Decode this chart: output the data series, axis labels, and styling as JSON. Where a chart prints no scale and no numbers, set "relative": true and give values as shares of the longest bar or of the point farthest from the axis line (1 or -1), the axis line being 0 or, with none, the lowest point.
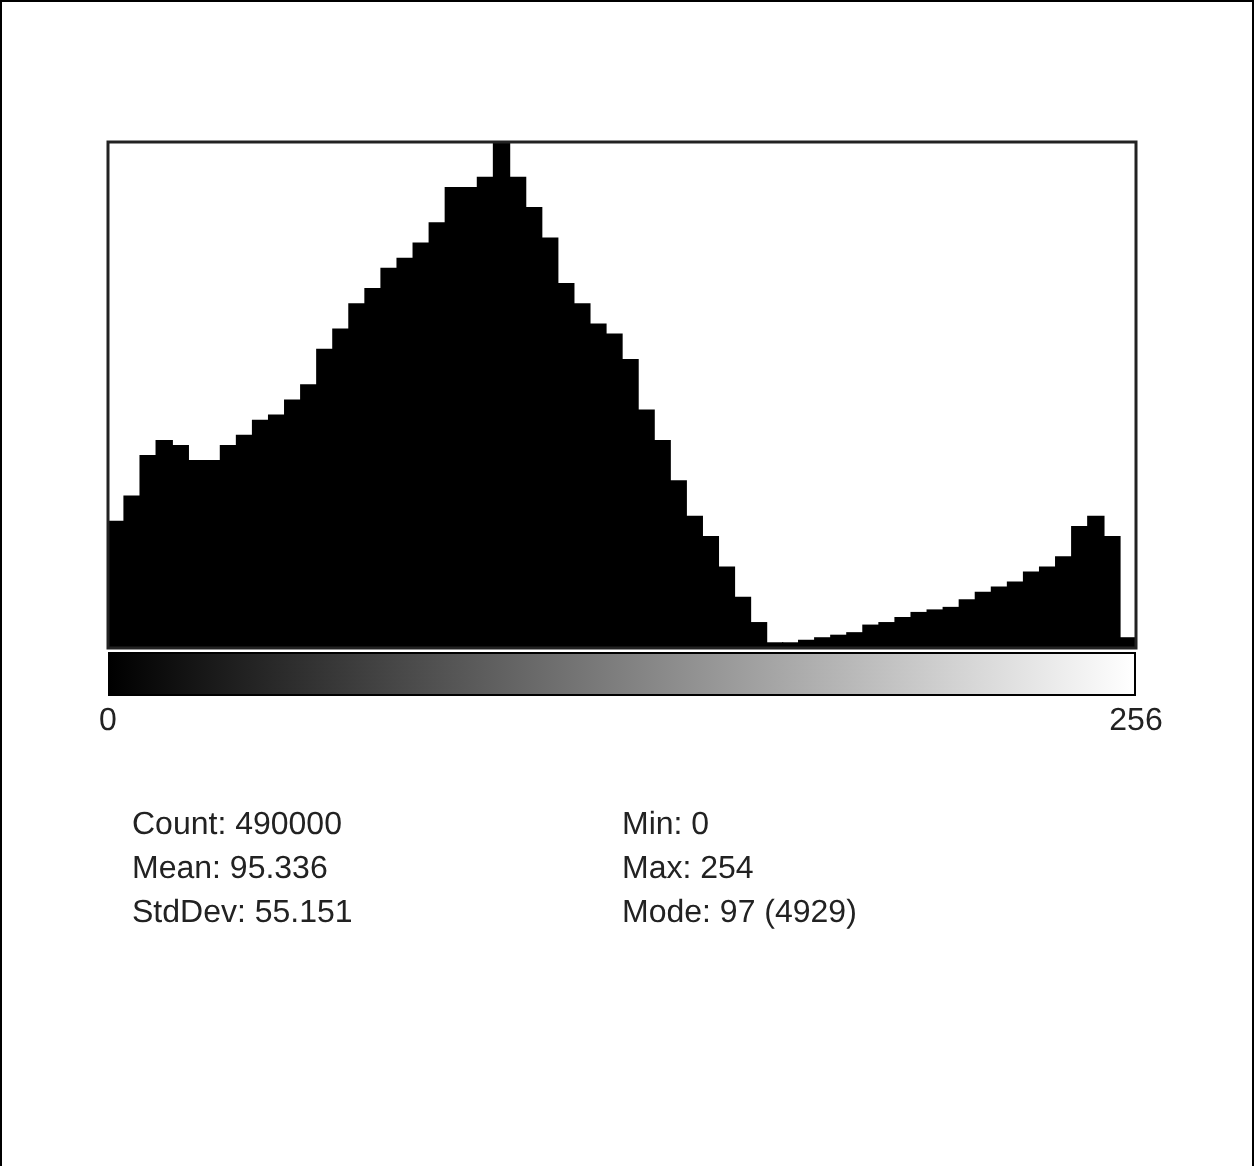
{
  "chart_data": {
    "type": "bar",
    "relative": true,
    "color": "#000000",
    "x": [
      2,
      6,
      10,
      14,
      18,
      22,
      26,
      30,
      34,
      38,
      42,
      46,
      50,
      54,
      58,
      62,
      66,
      70,
      74,
      78,
      82,
      86,
      90,
      94,
      98,
      102,
      106,
      110,
      114,
      118,
      122,
      126,
      130,
      134,
      138,
      142,
      146,
      150,
      154,
      158,
      162,
      166,
      170,
      174,
      178,
      182,
      186,
      190,
      194,
      198,
      202,
      206,
      210,
      214,
      218,
      222,
      226,
      230,
      234,
      238,
      242,
      246,
      250,
      254
    ],
    "values": [
      0.25,
      0.3,
      0.38,
      0.41,
      0.4,
      0.37,
      0.37,
      0.4,
      0.42,
      0.45,
      0.46,
      0.49,
      0.52,
      0.59,
      0.63,
      0.68,
      0.71,
      0.75,
      0.77,
      0.8,
      0.84,
      0.91,
      0.91,
      0.93,
      1,
      0.93,
      0.87,
      0.81,
      0.72,
      0.68,
      0.64,
      0.62,
      0.57,
      0.47,
      0.41,
      0.33,
      0.26,
      0.22,
      0.16,
      0.1,
      0.05,
      0.01,
      0.01,
      0.015,
      0.02,
      0.025,
      0.03,
      0.045,
      0.05,
      0.06,
      0.07,
      0.075,
      0.08,
      0.095,
      0.11,
      0.12,
      0.13,
      0.15,
      0.16,
      0.18,
      0.24,
      0.26,
      0.22,
      0.02
    ],
    "xlim": [
      0,
      256
    ],
    "xticks": [
      0,
      256
    ],
    "grid": false,
    "legend": false,
    "annotations": [
      "Count: 490000",
      "Min: 0",
      "Mean: 95.336",
      "Max: 254",
      "StdDev: 55.151",
      "Mode: 97 (4929)"
    ]
  }
}
